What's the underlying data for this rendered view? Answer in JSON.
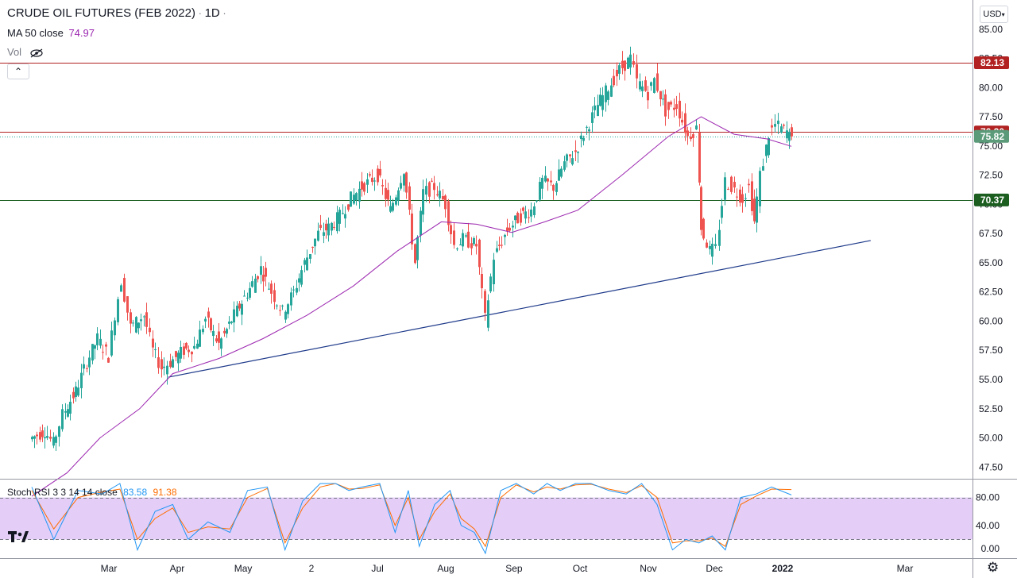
{
  "header": {
    "title": "CRUDE OIL FUTURES (FEB 2022)",
    "separator": "·",
    "interval": "1D",
    "ma_label": "MA 50 close",
    "ma_value": "74.97",
    "vol_label": "Vol",
    "collapse_icon": "⌃"
  },
  "currency": "USD",
  "stoch": {
    "label": "Stoch RSI 3 3 14 14 close",
    "k_value": "83.58",
    "d_value": "91.38"
  },
  "colors": {
    "up": "#26a69a",
    "down": "#ef5350",
    "ma": "#9c27b0",
    "trend": "#1e3a8a",
    "resistance": "#b22222",
    "support": "#1b5e20",
    "stoch_k": "#2196f3",
    "stoch_d": "#ff6d00",
    "stoch_band": "#e1c9f7"
  },
  "chart_data": {
    "type": "candlestick",
    "title": "CRUDE OIL FUTURES (FEB 2022)",
    "interval": "1D",
    "y_ticks": [
      "85.00",
      "82.50",
      "80.00",
      "77.50",
      "75.00",
      "72.50",
      "70.00",
      "67.50",
      "65.00",
      "62.50",
      "60.00",
      "57.50",
      "55.00",
      "52.50",
      "50.00",
      "47.50"
    ],
    "x_ticks": [
      "Mar",
      "Apr",
      "May",
      "2",
      "Jul",
      "Aug",
      "Sep",
      "Oct",
      "Nov",
      "Dec",
      "2022",
      "Mar"
    ],
    "ylim": [
      46.5,
      87.5
    ],
    "price_tags": [
      {
        "value": "82.13",
        "kind": "resistance"
      },
      {
        "value": "76.20",
        "kind": "resistance"
      },
      {
        "value": "75.82",
        "kind": "last"
      },
      {
        "value": "70.37",
        "kind": "support"
      }
    ],
    "horizontal_lines": [
      82.13,
      76.2,
      70.37
    ],
    "last_price_line": 75.82,
    "trendline": {
      "from_month": "Mar",
      "from_day": 28,
      "from_value": 55.2,
      "to_month": "Feb",
      "to_day": 10,
      "to_value": 66.9
    },
    "close_path": [
      [
        "Jan",
        25,
        49.9
      ],
      [
        "Feb",
        1,
        50.6
      ],
      [
        "Feb",
        5,
        49.5
      ],
      [
        "Feb",
        9,
        52.0
      ],
      [
        "Feb",
        15,
        54.0
      ],
      [
        "Feb",
        20,
        56.5
      ],
      [
        "Feb",
        25,
        58.5
      ],
      [
        "Mar",
        2,
        57.0
      ],
      [
        "Mar",
        5,
        60.6
      ],
      [
        "Mar",
        8,
        63.5
      ],
      [
        "Mar",
        12,
        59.5
      ],
      [
        "Mar",
        18,
        60.5
      ],
      [
        "Mar",
        22,
        57.5
      ],
      [
        "Mar",
        26,
        56.0
      ],
      [
        "Mar",
        30,
        56.5
      ],
      [
        "Apr",
        5,
        57.5
      ],
      [
        "Apr",
        10,
        57.8
      ],
      [
        "Apr",
        15,
        60.2
      ],
      [
        "Apr",
        21,
        58.0
      ],
      [
        "Apr",
        28,
        60.5
      ],
      [
        "May",
        5,
        62.8
      ],
      [
        "May",
        10,
        64.5
      ],
      [
        "May",
        15,
        62.5
      ],
      [
        "May",
        20,
        60.8
      ],
      [
        "May",
        25,
        62.5
      ],
      [
        "May",
        30,
        65.0
      ],
      [
        "Jun",
        5,
        67.5
      ],
      [
        "Jun",
        10,
        68.0
      ],
      [
        "Jun",
        15,
        69.0
      ],
      [
        "Jun",
        20,
        70.5
      ],
      [
        "Jun",
        25,
        71.5
      ],
      [
        "Jul",
        2,
        72.5
      ],
      [
        "Jul",
        8,
        69.5
      ],
      [
        "Jul",
        14,
        73.0
      ],
      [
        "Jul",
        19,
        65.0
      ],
      [
        "Jul",
        23,
        71.0
      ],
      [
        "Jul",
        28,
        71.5
      ],
      [
        "Aug",
        2,
        70.0
      ],
      [
        "Aug",
        6,
        66.5
      ],
      [
        "Aug",
        10,
        67.0
      ],
      [
        "Aug",
        16,
        66.5
      ],
      [
        "Aug",
        20,
        60.2
      ],
      [
        "Aug",
        24,
        65.5
      ],
      [
        "Aug",
        30,
        67.8
      ],
      [
        "Sep",
        5,
        69.0
      ],
      [
        "Sep",
        10,
        69.5
      ],
      [
        "Sep",
        15,
        72.0
      ],
      [
        "Sep",
        20,
        71.5
      ],
      [
        "Sep",
        25,
        73.5
      ],
      [
        "Sep",
        30,
        74.5
      ],
      [
        "Oct",
        5,
        76.5
      ],
      [
        "Oct",
        10,
        78.5
      ],
      [
        "Oct",
        15,
        80.0
      ],
      [
        "Oct",
        20,
        81.5
      ],
      [
        "Oct",
        25,
        82.5
      ],
      [
        "Oct",
        28,
        80.5
      ],
      [
        "Nov",
        2,
        79.5
      ],
      [
        "Nov",
        5,
        80.7
      ],
      [
        "Nov",
        10,
        78.0
      ],
      [
        "Nov",
        15,
        78.5
      ],
      [
        "Nov",
        20,
        75.8
      ],
      [
        "Nov",
        24,
        76.5
      ],
      [
        "Nov",
        26,
        68.0
      ],
      [
        "Nov",
        30,
        66.0
      ],
      [
        "Dec",
        3,
        66.2
      ],
      [
        "Dec",
        7,
        72.0
      ],
      [
        "Dec",
        10,
        71.5
      ],
      [
        "Dec",
        15,
        70.5
      ],
      [
        "Dec",
        18,
        71.5
      ],
      [
        "Dec",
        20,
        68.5
      ],
      [
        "Dec",
        23,
        72.5
      ],
      [
        "Dec",
        27,
        76.0
      ],
      [
        "Dec",
        30,
        76.8
      ],
      [
        "Jan",
        4,
        76.2
      ],
      [
        "Jan",
        5,
        75.82
      ]
    ],
    "ma50_path": [
      [
        "Jan",
        25,
        45.0
      ],
      [
        "Feb",
        10,
        47.0
      ],
      [
        "Feb",
        25,
        50.0
      ],
      [
        "Mar",
        15,
        52.5
      ],
      [
        "Mar",
        30,
        55.5
      ],
      [
        "Apr",
        20,
        56.8
      ],
      [
        "May",
        10,
        58.5
      ],
      [
        "May",
        30,
        60.5
      ],
      [
        "Jun",
        20,
        63.0
      ],
      [
        "Jul",
        10,
        66.0
      ],
      [
        "Jul",
        30,
        68.5
      ],
      [
        "Aug",
        15,
        68.3
      ],
      [
        "Aug",
        31,
        67.6
      ],
      [
        "Sep",
        15,
        68.5
      ],
      [
        "Sep",
        30,
        69.5
      ],
      [
        "Oct",
        20,
        72.5
      ],
      [
        "Nov",
        10,
        75.8
      ],
      [
        "Nov",
        25,
        77.5
      ],
      [
        "Dec",
        10,
        76.0
      ],
      [
        "Dec",
        25,
        75.6
      ],
      [
        "Jan",
        5,
        74.97
      ]
    ],
    "stoch_rsi": {
      "levels": [
        "80.00",
        "40.00",
        "0.00"
      ],
      "upper_band": 80,
      "lower_band": 20,
      "ylim": [
        0,
        100
      ],
      "k_path": [
        [
          "Jan",
          25,
          95
        ],
        [
          "Feb",
          4,
          20
        ],
        [
          "Feb",
          15,
          90
        ],
        [
          "Feb",
          26,
          85
        ],
        [
          "Mar",
          6,
          100
        ],
        [
          "Mar",
          14,
          5
        ],
        [
          "Mar",
          22,
          60
        ],
        [
          "Mar",
          30,
          70
        ],
        [
          "Apr",
          6,
          20
        ],
        [
          "Apr",
          15,
          45
        ],
        [
          "Apr",
          25,
          30
        ],
        [
          "May",
          3,
          90
        ],
        [
          "May",
          12,
          95
        ],
        [
          "May",
          20,
          5
        ],
        [
          "May",
          28,
          75
        ],
        [
          "Jun",
          5,
          100
        ],
        [
          "Jun",
          12,
          100
        ],
        [
          "Jun",
          18,
          90
        ],
        [
          "Jun",
          24,
          95
        ],
        [
          "Jul",
          2,
          100
        ],
        [
          "Jul",
          9,
          30
        ],
        [
          "Jul",
          15,
          90
        ],
        [
          "Jul",
          20,
          10
        ],
        [
          "Jul",
          27,
          70
        ],
        [
          "Aug",
          3,
          90
        ],
        [
          "Aug",
          8,
          40
        ],
        [
          "Aug",
          14,
          30
        ],
        [
          "Aug",
          19,
          0
        ],
        [
          "Aug",
          26,
          90
        ],
        [
          "Sep",
          2,
          100
        ],
        [
          "Sep",
          10,
          85
        ],
        [
          "Sep",
          16,
          100
        ],
        [
          "Sep",
          22,
          90
        ],
        [
          "Sep",
          29,
          100
        ],
        [
          "Oct",
          6,
          100
        ],
        [
          "Oct",
          14,
          90
        ],
        [
          "Oct",
          22,
          85
        ],
        [
          "Oct",
          29,
          100
        ],
        [
          "Nov",
          5,
          70
        ],
        [
          "Nov",
          12,
          5
        ],
        [
          "Nov",
          18,
          20
        ],
        [
          "Nov",
          24,
          15
        ],
        [
          "Nov",
          30,
          25
        ],
        [
          "Dec",
          6,
          5
        ],
        [
          "Dec",
          13,
          80
        ],
        [
          "Dec",
          20,
          85
        ],
        [
          "Dec",
          27,
          95
        ],
        [
          "Jan",
          5,
          83.58
        ]
      ],
      "d_path": [
        [
          "Jan",
          25,
          90
        ],
        [
          "Feb",
          4,
          35
        ],
        [
          "Feb",
          15,
          80
        ],
        [
          "Feb",
          26,
          88
        ],
        [
          "Mar",
          6,
          92
        ],
        [
          "Mar",
          14,
          20
        ],
        [
          "Mar",
          22,
          50
        ],
        [
          "Mar",
          30,
          65
        ],
        [
          "Apr",
          6,
          30
        ],
        [
          "Apr",
          15,
          38
        ],
        [
          "Apr",
          25,
          35
        ],
        [
          "May",
          3,
          80
        ],
        [
          "May",
          12,
          93
        ],
        [
          "May",
          20,
          15
        ],
        [
          "May",
          28,
          65
        ],
        [
          "Jun",
          5,
          95
        ],
        [
          "Jun",
          12,
          100
        ],
        [
          "Jun",
          18,
          92
        ],
        [
          "Jun",
          24,
          93
        ],
        [
          "Jul",
          2,
          98
        ],
        [
          "Jul",
          9,
          40
        ],
        [
          "Jul",
          15,
          80
        ],
        [
          "Jul",
          20,
          20
        ],
        [
          "Jul",
          27,
          60
        ],
        [
          "Aug",
          3,
          85
        ],
        [
          "Aug",
          8,
          50
        ],
        [
          "Aug",
          14,
          35
        ],
        [
          "Aug",
          19,
          10
        ],
        [
          "Aug",
          26,
          80
        ],
        [
          "Sep",
          2,
          98
        ],
        [
          "Sep",
          10,
          88
        ],
        [
          "Sep",
          16,
          95
        ],
        [
          "Sep",
          22,
          92
        ],
        [
          "Sep",
          29,
          98
        ],
        [
          "Oct",
          6,
          99
        ],
        [
          "Oct",
          14,
          92
        ],
        [
          "Oct",
          22,
          87
        ],
        [
          "Oct",
          29,
          97
        ],
        [
          "Nov",
          5,
          80
        ],
        [
          "Nov",
          12,
          15
        ],
        [
          "Nov",
          18,
          18
        ],
        [
          "Nov",
          24,
          18
        ],
        [
          "Nov",
          30,
          22
        ],
        [
          "Dec",
          6,
          10
        ],
        [
          "Dec",
          13,
          70
        ],
        [
          "Dec",
          20,
          82
        ],
        [
          "Dec",
          27,
          92
        ],
        [
          "Jan",
          5,
          91.38
        ]
      ]
    }
  }
}
